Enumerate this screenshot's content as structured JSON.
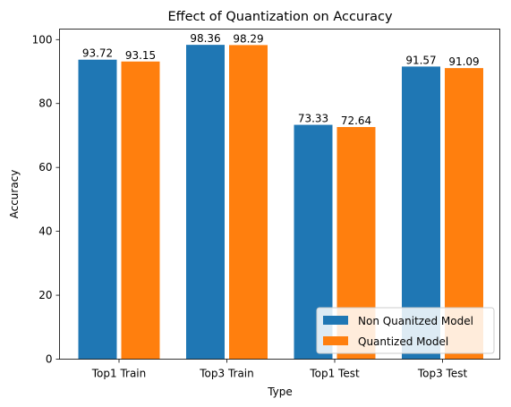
{
  "chart_data": {
    "type": "bar",
    "title": "Effect of Quantization on Accuracy",
    "xlabel": "Type",
    "ylabel": "Accuracy",
    "categories": [
      "Top1 Train",
      "Top3 Train",
      "Top1 Test",
      "Top3 Test"
    ],
    "series": [
      {
        "name": "Non Quanitzed Model",
        "color": "#1f77b4",
        "values": [
          93.72,
          98.36,
          73.33,
          91.57
        ]
      },
      {
        "name": "Quantized Model",
        "color": "#ff7f0e",
        "values": [
          93.15,
          98.29,
          72.64,
          91.09
        ]
      }
    ],
    "data_labels": [
      [
        "93.72",
        "98.36",
        "73.33",
        "91.57"
      ],
      [
        "93.15",
        "98.29",
        "72.64",
        "91.09"
      ]
    ],
    "yticks": [
      0,
      20,
      40,
      60,
      80,
      100
    ],
    "ytick_labels": [
      "0",
      "20",
      "40",
      "60",
      "80",
      "100"
    ],
    "ylim": [
      0,
      103.3
    ],
    "legend_position": "lower-right",
    "grid": false
  }
}
